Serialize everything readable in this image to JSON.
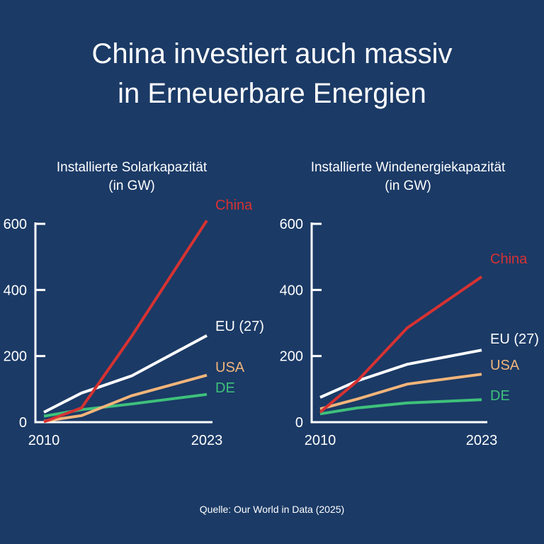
{
  "title": {
    "line1": "China investiert auch massiv",
    "line2": "in Erneuerbare Energien"
  },
  "source": "Quelle: Our World in Data (2025)",
  "colors": {
    "background": "#1b3a66",
    "China": "#d63232",
    "EU (27)": "#ffffff",
    "USA": "#f2b57a",
    "DE": "#3ec17b"
  },
  "chart_data": [
    {
      "type": "line",
      "title": "Installierte Solarkapazität",
      "subtitle": "(in GW)",
      "xlabel": "",
      "ylabel": "",
      "x": [
        2010,
        2013,
        2017,
        2023
      ],
      "x_tick_labels": [
        "2010",
        "2023"
      ],
      "y_ticks": [
        0,
        200,
        400,
        600
      ],
      "y_tick_labels": [
        "0",
        "200",
        "400",
        "600"
      ],
      "xlim": [
        2010,
        2023
      ],
      "ylim": [
        0,
        600
      ],
      "grid": false,
      "series": [
        {
          "name": "China",
          "label": "China",
          "values": [
            1,
            43,
            260,
            610
          ]
        },
        {
          "name": "EU (27)",
          "label": "EU (27)",
          "values": [
            30,
            88,
            140,
            262
          ]
        },
        {
          "name": "USA",
          "label": "USA",
          "values": [
            3,
            20,
            80,
            142
          ]
        },
        {
          "name": "DE",
          "label": "DE",
          "values": [
            18,
            38,
            55,
            84
          ]
        }
      ]
    },
    {
      "type": "line",
      "title": "Installierte Windenergiekapazität",
      "subtitle": "(in GW)",
      "xlabel": "",
      "ylabel": "",
      "x": [
        2010,
        2013,
        2017,
        2023
      ],
      "x_tick_labels": [
        "2010",
        "2023"
      ],
      "y_ticks": [
        0,
        200,
        400,
        600
      ],
      "y_tick_labels": [
        "0",
        "200",
        "400",
        "600"
      ],
      "xlim": [
        2010,
        2023
      ],
      "ylim": [
        0,
        600
      ],
      "grid": false,
      "series": [
        {
          "name": "China",
          "label": "China",
          "values": [
            30,
            125,
            285,
            440
          ]
        },
        {
          "name": "EU (27)",
          "label": "EU (27)",
          "values": [
            75,
            125,
            175,
            218
          ]
        },
        {
          "name": "USA",
          "label": "USA",
          "values": [
            40,
            70,
            115,
            145
          ]
        },
        {
          "name": "DE",
          "label": "DE",
          "values": [
            25,
            43,
            58,
            68
          ]
        }
      ]
    }
  ]
}
